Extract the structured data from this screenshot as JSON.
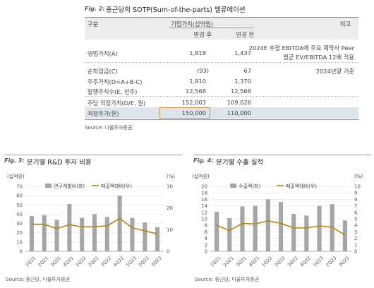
{
  "fig2": {
    "label": "Fig. 2:",
    "title": "종근당의 SOTP(Sum-of-the-parts) 밸류에이션",
    "header": {
      "col0": "구분",
      "col1_top": "기업가치(십억원)",
      "col1": "변경 후",
      "col2": "변경 전",
      "col3": "비고"
    },
    "rows": [
      {
        "label": "영업가치(A)",
        "after": "1,818",
        "before": "1,437",
        "note1": "2024E 추정 EBITDA에 주요 제약사 Peer",
        "note2": "평균 EV/EBITDA 12배 적용"
      },
      {
        "label": "순차입금(C)",
        "after": "(93)",
        "before": "67",
        "note1": "2024년말 기준",
        "note2": ""
      },
      {
        "label": "주주가치(D=A+B-C)",
        "after": "1,910",
        "before": "1,370",
        "note1": "",
        "note2": ""
      },
      {
        "label": "발행주식수(E, 천주)",
        "after": "12,568",
        "before": "12,568",
        "note1": "",
        "note2": ""
      },
      {
        "label": "주당 적정가치(D/E, 원)",
        "after": "152,003",
        "before": "109,026",
        "note1": "",
        "note2": ""
      },
      {
        "label": "적정주가(원)",
        "after": "150,000",
        "before": "110,000",
        "note1": "",
        "note2": ""
      }
    ],
    "source": "Source: 다올투자증권"
  },
  "fig3": {
    "label": "Fig. 3:",
    "title": "분기별 R&D 투자 비용",
    "source": "Source: 종근당, 다올투자증권"
  },
  "fig4": {
    "label": "Fig. 4:",
    "title": "분기별 수출 실적",
    "source": "Source: 종근당, 다올투자증권"
  },
  "colors": {
    "bar": "#a6a6a6",
    "line": "#b8860b",
    "highlight_row": "#dde4ec",
    "highlight_box": "#c8963e",
    "header_bg": "#ececec"
  },
  "chart_data": [
    {
      "type": "bar",
      "combo": "bar+line",
      "categories": [
        "1Q21",
        "2Q21",
        "3Q21",
        "4Q21",
        "1Q22",
        "2Q22",
        "3Q22",
        "4Q22",
        "1Q23",
        "2Q23",
        "3Q23"
      ],
      "ylabel_left": "(십억원)",
      "ylabel_right": "(%)",
      "ylim_left": [
        0,
        70
      ],
      "yticks_left": [
        0,
        10,
        20,
        30,
        40,
        50,
        60,
        70
      ],
      "ylim_right": [
        0,
        30
      ],
      "yticks_right": [
        0,
        10,
        20,
        30
      ],
      "legend_position": "top",
      "series": [
        {
          "name": "연구개발비(좌)",
          "kind": "bar",
          "axis": "left",
          "values": [
            38,
            39,
            34,
            51,
            36,
            40,
            37,
            60,
            36,
            31,
            26
          ]
        },
        {
          "name": "매출액대비(우)",
          "kind": "line",
          "axis": "right",
          "values": [
            12.5,
            12.4,
            10.5,
            12.3,
            11.3,
            11.3,
            11.8,
            15.2,
            10.8,
            9.5,
            8.0
          ]
        }
      ]
    },
    {
      "type": "bar",
      "combo": "bar+line",
      "categories": [
        "1Q21",
        "2Q21",
        "3Q21",
        "4Q21",
        "1Q22",
        "2Q22",
        "3Q22",
        "4Q22",
        "1Q23",
        "2Q23",
        "3Q23"
      ],
      "ylabel_left": "(십억원)",
      "ylabel_right": "(%)",
      "ylim_left": [
        0,
        20
      ],
      "yticks_left": [
        0,
        2,
        4,
        6,
        8,
        10,
        12,
        14,
        16,
        18,
        20
      ],
      "ylim_right": [
        0,
        10
      ],
      "yticks_right": [
        0,
        1,
        2,
        3,
        4,
        5,
        6,
        7,
        8,
        9,
        10
      ],
      "legend_position": "top",
      "series": [
        {
          "name": "수출액(좌)",
          "kind": "bar",
          "axis": "left",
          "values": [
            12.2,
            10.2,
            13.8,
            14.0,
            16.0,
            15.2,
            11.5,
            11.0,
            14.0,
            14.5,
            9.5
          ]
        },
        {
          "name": "매출액대비(우)",
          "kind": "line",
          "axis": "right",
          "values": [
            4.0,
            3.2,
            4.3,
            4.2,
            4.7,
            4.3,
            3.6,
            3.6,
            3.9,
            3.7,
            2.5
          ]
        }
      ]
    }
  ]
}
